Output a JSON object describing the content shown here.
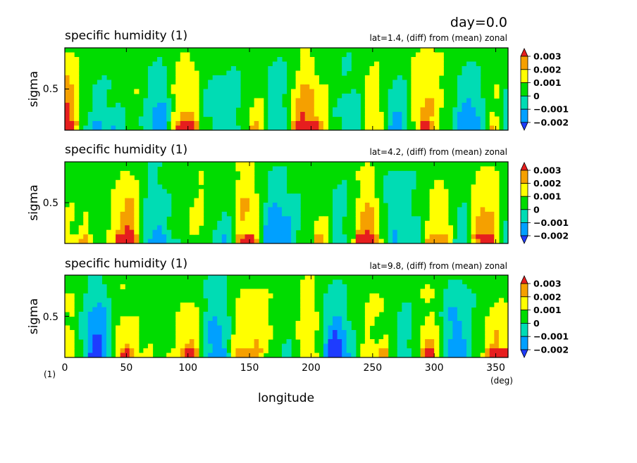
{
  "header": {
    "day_label": "day=0.0"
  },
  "colors": {
    "levels": [
      "#1e3cff",
      "#00a0ff",
      "#00dcb4",
      "#00dc00",
      "#ffff00",
      "#f5a000",
      "#e61e1e"
    ],
    "background": "#ffffff"
  },
  "chart_data": [
    {
      "type": "heatmap",
      "title": "specific humidity (1)",
      "subtitle": "lat=1.4, (diff) from (mean) zonal",
      "ylabel": "sigma",
      "yticks": [
        "0.5"
      ],
      "ylim": [
        0,
        1
      ],
      "colorbar": {
        "ticks": [
          "0.003",
          "0.002",
          "0.001",
          "0",
          "−0.001",
          "−0.002"
        ]
      }
    },
    {
      "type": "heatmap",
      "title": "specific humidity (1)",
      "subtitle": "lat=4.2, (diff) from (mean) zonal",
      "ylabel": "sigma",
      "yticks": [
        "0.5"
      ],
      "ylim": [
        0,
        1
      ],
      "colorbar": {
        "ticks": [
          "0.003",
          "0.002",
          "0.001",
          "0",
          "−0.001",
          "−0.002"
        ]
      }
    },
    {
      "type": "heatmap",
      "title": "specific humidity (1)",
      "subtitle": "lat=9.8, (diff) from (mean) zonal",
      "ylabel": "sigma",
      "yticks": [
        "0.5"
      ],
      "ylim": [
        0,
        1
      ],
      "colorbar": {
        "ticks": [
          "0.003",
          "0.002",
          "0.001",
          "0",
          "−0.001",
          "−0.002"
        ]
      },
      "xlabel": "longitude",
      "xticks": [
        "0",
        "50",
        "100",
        "150",
        "200",
        "250",
        "300",
        "350"
      ],
      "xlim": [
        0,
        360
      ],
      "x_unit": "(deg)",
      "y_unit": "(1)"
    }
  ]
}
